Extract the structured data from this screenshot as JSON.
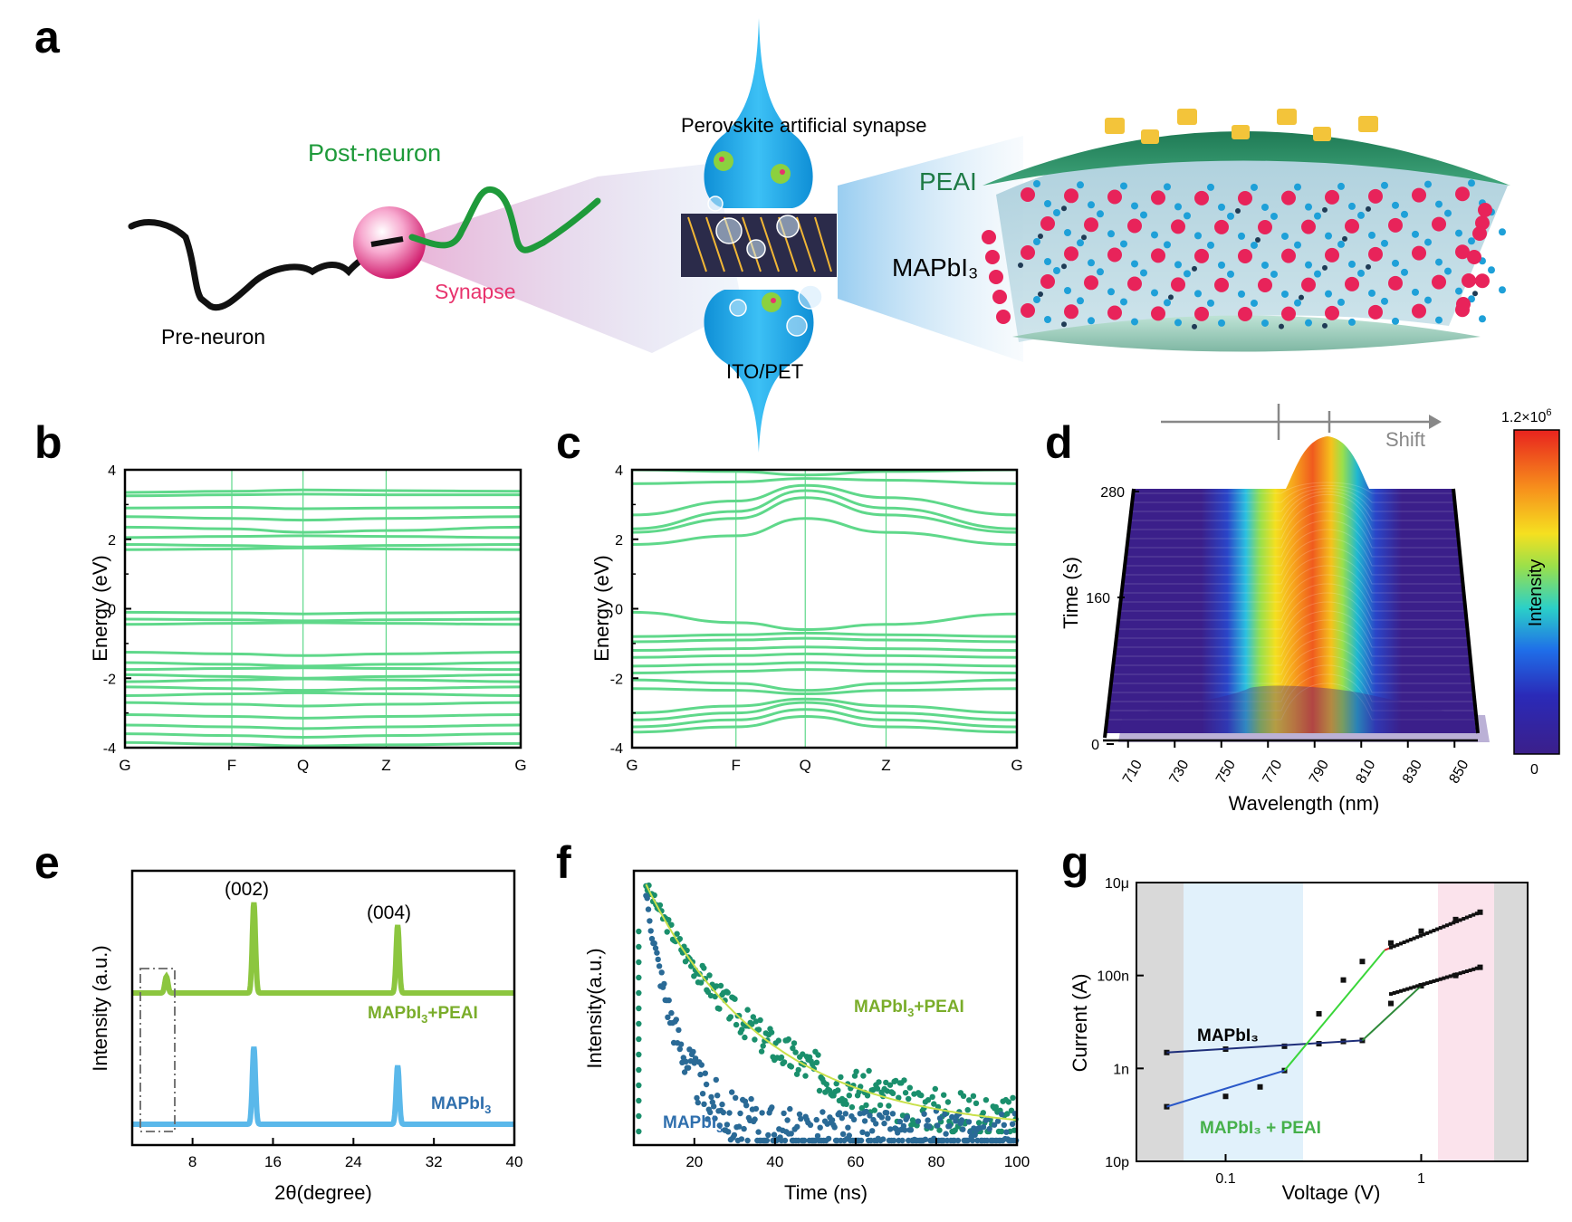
{
  "panels": {
    "a": {
      "letter": "a",
      "post_neuron": "Post-neuron",
      "pre_neuron": "Pre-neuron",
      "synapse": "Synapse",
      "perovskite_synapse": "Perovskite artificial synapse",
      "peai": "PEAI",
      "mapbi3": "MAPbI₃",
      "ito_pet": "ITO/PET"
    },
    "b": {
      "letter": "b",
      "ylabel": "Energy (eV)",
      "yticks": [
        "4",
        "2",
        "0",
        "-2",
        "-4"
      ],
      "kpoints": [
        "G",
        "F",
        "Q",
        "Z",
        "G"
      ]
    },
    "c": {
      "letter": "c",
      "ylabel": "Energy (eV)",
      "yticks": [
        "4",
        "2",
        "0",
        "-2",
        "-4"
      ],
      "kpoints": [
        "G",
        "F",
        "Q",
        "Z",
        "G"
      ]
    },
    "d": {
      "letter": "d",
      "ylabel": "Time (s)",
      "xlabel": "Wavelength (nm)",
      "yticks": [
        "280",
        "160",
        "0"
      ],
      "xticks": [
        "710",
        "730",
        "750",
        "770",
        "790",
        "810",
        "830",
        "850"
      ],
      "shift_label": "Shift",
      "colorbar_label": "Intensity",
      "colorbar_max": "1.2×10",
      "colorbar_max_exp": "6",
      "colorbar_min": "0"
    },
    "e": {
      "letter": "e",
      "ylabel": "Intensity (a.u.)",
      "xlabel": "2θ(degree)",
      "xticks": [
        "8",
        "16",
        "24",
        "32",
        "40"
      ],
      "peak1": "(002)",
      "peak2": "(004)",
      "series1": "MAPbI3+PEAI",
      "series2": "MAPbI3"
    },
    "f": {
      "letter": "f",
      "ylabel": "Intensity(a.u.)",
      "xlabel": "Time (ns)",
      "xticks": [
        "20",
        "40",
        "60",
        "80",
        "100"
      ],
      "series1": "MAPbI3+PEAI",
      "series2": "MAPbI3"
    },
    "g": {
      "letter": "g",
      "ylabel": "Current (A)",
      "xlabel": "Voltage (V)",
      "yticks": [
        "10μ",
        "100n",
        "1n",
        "10p"
      ],
      "xticks": [
        "0.1",
        "1"
      ],
      "series1": "MAPbI₃",
      "series2": "MAPbI₃ + PEAI"
    }
  },
  "colors": {
    "band_green": "#5fd88a",
    "peai_green": "#8cc63f",
    "mapbi3_blue": "#5ab8ea",
    "tr_green": "#1a8f6c",
    "tr_blue": "#2a6a96",
    "fit_yellow": "#c8e04a",
    "label_green": "#7aad2a",
    "label_blue": "#2f6fad",
    "synapse_blue": "#1aa3e8",
    "neuron_green": "#1e9a3a",
    "synapse_pink": "#e8336d"
  },
  "chart_data": [
    {
      "type": "line",
      "panel": "b",
      "xlabel": "",
      "ylabel": "Energy (eV)",
      "ylim": [
        -4,
        4
      ],
      "x_categories": [
        "G",
        "F",
        "Q",
        "Z",
        "G"
      ],
      "series": [
        {
          "values": [
            3.35,
            3.38,
            3.42,
            3.4,
            3.38
          ]
        },
        {
          "values": [
            3.25,
            3.28,
            3.3,
            3.28,
            3.28
          ]
        },
        {
          "values": [
            2.9,
            2.92,
            2.88,
            2.9,
            2.92
          ]
        },
        {
          "values": [
            2.65,
            2.6,
            2.55,
            2.6,
            2.65
          ]
        },
        {
          "values": [
            2.35,
            2.3,
            2.2,
            2.25,
            2.35
          ]
        },
        {
          "values": [
            2.05,
            2.08,
            2.1,
            2.08,
            2.05
          ]
        },
        {
          "values": [
            1.85,
            1.82,
            1.78,
            1.82,
            1.85
          ]
        },
        {
          "values": [
            1.7,
            1.72,
            1.75,
            1.72,
            1.7
          ]
        },
        {
          "values": [
            -0.1,
            -0.12,
            -0.15,
            -0.12,
            -0.1
          ]
        },
        {
          "values": [
            -0.3,
            -0.32,
            -0.35,
            -0.32,
            -0.3
          ]
        },
        {
          "values": [
            -0.45,
            -0.42,
            -0.4,
            -0.42,
            -0.45
          ]
        },
        {
          "values": [
            -1.25,
            -1.3,
            -1.35,
            -1.3,
            -1.25
          ]
        },
        {
          "values": [
            -1.55,
            -1.6,
            -1.65,
            -1.6,
            -1.55
          ]
        },
        {
          "values": [
            -1.75,
            -1.72,
            -1.7,
            -1.72,
            -1.75
          ]
        },
        {
          "values": [
            -1.9,
            -1.95,
            -2.0,
            -1.95,
            -1.9
          ]
        },
        {
          "values": [
            -2.1,
            -2.05,
            -2.02,
            -2.05,
            -2.1
          ]
        },
        {
          "values": [
            -2.25,
            -2.3,
            -2.35,
            -2.3,
            -2.25
          ]
        },
        {
          "values": [
            -2.5,
            -2.45,
            -2.42,
            -2.45,
            -2.5
          ]
        },
        {
          "values": [
            -2.7,
            -2.75,
            -2.8,
            -2.75,
            -2.7
          ]
        },
        {
          "values": [
            -3.05,
            -3.1,
            -3.15,
            -3.1,
            -3.05
          ]
        },
        {
          "values": [
            -3.35,
            -3.4,
            -3.45,
            -3.4,
            -3.35
          ]
        },
        {
          "values": [
            -3.6,
            -3.65,
            -3.7,
            -3.65,
            -3.6
          ]
        },
        {
          "values": [
            -3.85,
            -3.9,
            -3.95,
            -3.92,
            -3.88
          ]
        }
      ]
    },
    {
      "type": "line",
      "panel": "c",
      "xlabel": "",
      "ylabel": "Energy (eV)",
      "ylim": [
        -4,
        4
      ],
      "x_categories": [
        "G",
        "F",
        "Q",
        "Z",
        "G"
      ],
      "series": [
        {
          "values": [
            4.0,
            3.95,
            3.85,
            3.95,
            4.0
          ]
        },
        {
          "values": [
            3.6,
            3.65,
            3.75,
            3.7,
            3.6
          ]
        },
        {
          "values": [
            2.7,
            3.1,
            3.55,
            3.2,
            2.7
          ]
        },
        {
          "values": [
            2.3,
            2.8,
            3.4,
            2.9,
            2.3
          ]
        },
        {
          "values": [
            2.2,
            2.6,
            3.2,
            2.7,
            2.2
          ]
        },
        {
          "values": [
            1.85,
            2.1,
            2.6,
            2.2,
            1.85
          ]
        },
        {
          "values": [
            -0.1,
            -0.4,
            -0.6,
            -0.45,
            -0.15
          ]
        },
        {
          "values": [
            -0.8,
            -0.75,
            -0.7,
            -0.75,
            -0.8
          ]
        },
        {
          "values": [
            -0.95,
            -0.9,
            -0.85,
            -0.9,
            -0.95
          ]
        },
        {
          "values": [
            -1.2,
            -1.15,
            -1.1,
            -1.15,
            -1.2
          ]
        },
        {
          "values": [
            -1.4,
            -1.35,
            -1.3,
            -1.35,
            -1.4
          ]
        },
        {
          "values": [
            -1.65,
            -1.6,
            -1.55,
            -1.6,
            -1.65
          ]
        },
        {
          "values": [
            -1.85,
            -1.8,
            -1.75,
            -1.8,
            -1.85
          ]
        },
        {
          "values": [
            -2.05,
            -2.15,
            -2.35,
            -2.15,
            -2.05
          ]
        },
        {
          "values": [
            -2.3,
            -2.35,
            -2.45,
            -2.35,
            -2.3
          ]
        },
        {
          "values": [
            -3.0,
            -2.8,
            -2.6,
            -2.8,
            -3.0
          ]
        },
        {
          "values": [
            -3.2,
            -3.0,
            -2.7,
            -3.0,
            -3.2
          ]
        },
        {
          "values": [
            -3.4,
            -3.2,
            -2.9,
            -3.2,
            -3.4
          ]
        },
        {
          "values": [
            -3.55,
            -3.4,
            -3.1,
            -3.4,
            -3.55
          ]
        }
      ]
    },
    {
      "type": "heatmap",
      "panel": "d",
      "xlabel": "Wavelength (nm)",
      "ylabel": "Time (s)",
      "xlim": [
        700,
        860
      ],
      "ylim": [
        0,
        280
      ],
      "colorbar_range": [
        0,
        1200000
      ],
      "peak_wavelength_start": 772,
      "peak_wavelength_end": 790
    },
    {
      "type": "line",
      "panel": "e",
      "xlabel": "2θ(degree)",
      "ylabel": "Intensity (a.u.)",
      "xlim": [
        2,
        40
      ],
      "series": [
        {
          "name": "MAPbI3+PEAI",
          "peaks": [
            {
              "x": 5.4,
              "h": 0.18
            },
            {
              "x": 14.1,
              "h": 1.0
            },
            {
              "x": 28.4,
              "h": 0.75
            }
          ],
          "offset": 1
        },
        {
          "name": "MAPbI3",
          "peaks": [
            {
              "x": 14.1,
              "h": 0.95
            },
            {
              "x": 28.4,
              "h": 0.72
            }
          ],
          "offset": 0
        }
      ]
    },
    {
      "type": "scatter",
      "panel": "f",
      "xlabel": "Time (ns)",
      "ylabel": "Intensity(a.u.)",
      "xlim": [
        5,
        100
      ],
      "series": [
        {
          "name": "MAPbI3+PEAI",
          "tau": 30
        },
        {
          "name": "MAPbI3",
          "tau": 9
        }
      ]
    },
    {
      "type": "line",
      "panel": "g",
      "xlabel": "Voltage (V)",
      "ylabel": "Current (A)",
      "xscale": "log",
      "yscale": "log",
      "xlim": [
        0.035,
        3.5
      ],
      "ylim": [
        1e-11,
        1e-05
      ],
      "series": [
        {
          "name": "MAPbI₃",
          "x": [
            0.05,
            0.1,
            0.2,
            0.3,
            0.4,
            0.5,
            0.7,
            1.0,
            1.5,
            2.0
          ],
          "y": [
            2.2e-09,
            2.6e-09,
            3e-09,
            3.4e-09,
            3.8e-09,
            4e-09,
            2.5e-08,
            6e-08,
            1e-07,
            1.5e-07
          ]
        },
        {
          "name": "MAPbI₃ + PEAI",
          "x": [
            0.05,
            0.1,
            0.15,
            0.2,
            0.3,
            0.4,
            0.5,
            0.7,
            1.0,
            1.5,
            2.0
          ],
          "y": [
            1.5e-10,
            2.5e-10,
            4e-10,
            9e-10,
            1.5e-08,
            8e-08,
            2e-07,
            5e-07,
            9e-07,
            1.6e-06,
            2.3e-06
          ]
        }
      ]
    }
  ]
}
